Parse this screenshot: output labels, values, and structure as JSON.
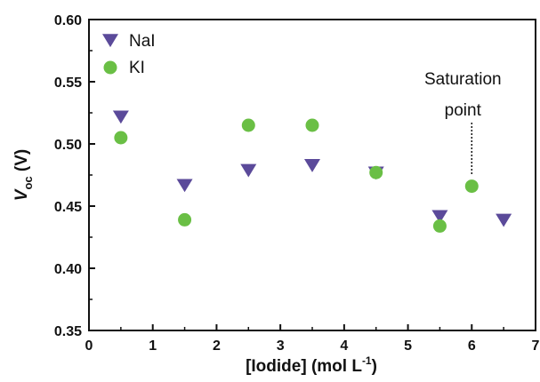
{
  "chart_data": {
    "type": "scatter",
    "xlabel": "[Iodide] (mol L",
    "xlabel_sup": "-1",
    "xlabel_end": ")",
    "ylabel_main": "V",
    "ylabel_sub": "oc",
    "ylabel_unit": " (V)",
    "xlim": [
      0,
      7
    ],
    "ylim": [
      0.35,
      0.6
    ],
    "xticks": [
      0,
      1,
      2,
      3,
      4,
      5,
      6,
      7
    ],
    "yticks": [
      0.35,
      0.4,
      0.45,
      0.5,
      0.55,
      0.6
    ],
    "ytick_labels": [
      "0.35",
      "0.40",
      "0.45",
      "0.50",
      "0.55",
      "0.60"
    ],
    "grid": false,
    "legend_position": "top-left",
    "series": [
      {
        "name": "NaI",
        "marker": "triangle-down",
        "color": "#5b4a9a",
        "x": [
          0.5,
          1.5,
          2.5,
          3.5,
          4.5,
          5.5,
          6.5
        ],
        "y": [
          0.522,
          0.467,
          0.479,
          0.483,
          0.477,
          0.442,
          0.439
        ]
      },
      {
        "name": "KI",
        "marker": "circle",
        "color": "#6abf45",
        "x": [
          0.5,
          1.5,
          2.5,
          3.5,
          4.5,
          5.5,
          6.0
        ],
        "y": [
          0.505,
          0.439,
          0.515,
          0.515,
          0.477,
          0.434,
          0.466
        ]
      }
    ],
    "annotations": [
      {
        "line1": "Saturation",
        "line2": "point",
        "x": 6.0,
        "y": 0.466
      }
    ]
  }
}
